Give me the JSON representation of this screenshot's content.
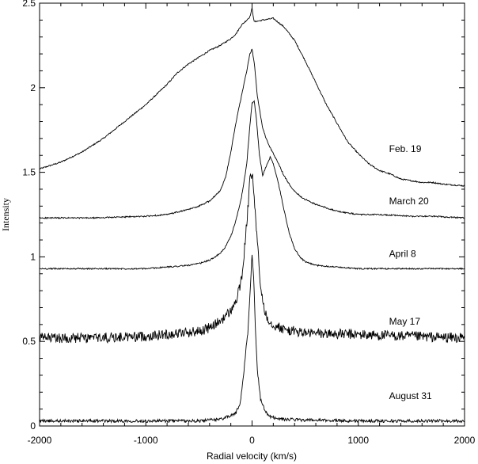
{
  "chart_data": {
    "type": "line",
    "title": "",
    "xlabel": "Radial velocity (km/s)",
    "ylabel": "Intensity",
    "xlim": [
      -2000,
      2000
    ],
    "ylim": [
      0,
      2.5
    ],
    "x_ticks": [
      -2000,
      -1000,
      0,
      1000,
      2000
    ],
    "x_tick_labels": [
      "-2000",
      "-1000",
      "0",
      "1000",
      "2000"
    ],
    "y_ticks": [
      0,
      0.5,
      1,
      1.5,
      2,
      2.5
    ],
    "y_tick_labels": [
      "0",
      "0.5",
      "1",
      "1.5",
      "2",
      "2.5"
    ],
    "grid": false,
    "series": [
      {
        "name": "Feb. 19",
        "noise": 0.004,
        "label_x": 1290,
        "label_y": 1.62,
        "x": [
          -2000,
          -1800,
          -1600,
          -1400,
          -1200,
          -1000,
          -800,
          -700,
          -600,
          -500,
          -400,
          -300,
          -200,
          -150,
          -100,
          -50,
          -20,
          0,
          20,
          100,
          200,
          300,
          400,
          500,
          600,
          700,
          800,
          900,
          1000,
          1100,
          1200,
          1300,
          1400,
          1500,
          1600,
          1700,
          1800,
          2000
        ],
        "y": [
          1.52,
          1.56,
          1.62,
          1.7,
          1.8,
          1.9,
          2.02,
          2.09,
          2.14,
          2.18,
          2.22,
          2.25,
          2.29,
          2.32,
          2.37,
          2.4,
          2.42,
          2.47,
          2.39,
          2.4,
          2.41,
          2.36,
          2.28,
          2.16,
          2.03,
          1.9,
          1.79,
          1.68,
          1.61,
          1.55,
          1.51,
          1.49,
          1.46,
          1.45,
          1.44,
          1.44,
          1.43,
          1.42
        ]
      },
      {
        "name": "March 20",
        "noise": 0.004,
        "label_x": 1290,
        "label_y": 1.31,
        "x": [
          -2000,
          -1500,
          -1000,
          -800,
          -600,
          -500,
          -400,
          -300,
          -250,
          -200,
          -150,
          -100,
          -50,
          -20,
          0,
          20,
          50,
          100,
          150,
          200,
          250,
          300,
          350,
          400,
          450,
          500,
          600,
          700,
          800,
          900,
          1000,
          1200,
          1500,
          1700,
          2000
        ],
        "y": [
          1.23,
          1.23,
          1.24,
          1.25,
          1.28,
          1.3,
          1.33,
          1.39,
          1.47,
          1.62,
          1.8,
          1.95,
          2.1,
          2.2,
          2.23,
          2.15,
          1.95,
          1.76,
          1.67,
          1.61,
          1.55,
          1.48,
          1.43,
          1.39,
          1.36,
          1.34,
          1.31,
          1.29,
          1.27,
          1.26,
          1.25,
          1.25,
          1.24,
          1.24,
          1.23
        ]
      },
      {
        "name": "April 8",
        "noise": 0.004,
        "label_x": 1290,
        "label_y": 1.0,
        "x": [
          -2000,
          -1500,
          -1000,
          -800,
          -600,
          -500,
          -400,
          -300,
          -250,
          -200,
          -150,
          -100,
          -50,
          -20,
          0,
          20,
          40,
          70,
          100,
          130,
          170,
          200,
          250,
          300,
          350,
          400,
          450,
          500,
          600,
          800,
          1000,
          1500,
          2000
        ],
        "y": [
          0.93,
          0.93,
          0.93,
          0.94,
          0.95,
          0.96,
          0.98,
          1.02,
          1.06,
          1.12,
          1.22,
          1.35,
          1.55,
          1.78,
          1.91,
          1.92,
          1.82,
          1.6,
          1.48,
          1.53,
          1.59,
          1.55,
          1.43,
          1.28,
          1.14,
          1.05,
          1.0,
          0.97,
          0.95,
          0.94,
          0.93,
          0.93,
          0.93
        ]
      },
      {
        "name": "May 17",
        "noise": 0.03,
        "label_x": 1290,
        "label_y": 0.6,
        "x": [
          -2000,
          -1500,
          -1000,
          -500,
          -400,
          -300,
          -200,
          -150,
          -100,
          -70,
          -40,
          -20,
          0,
          20,
          50,
          80,
          120,
          160,
          200,
          300,
          500,
          1000,
          1500,
          2000
        ],
        "y": [
          0.52,
          0.52,
          0.53,
          0.56,
          0.58,
          0.62,
          0.68,
          0.74,
          0.86,
          1.05,
          1.28,
          1.45,
          1.49,
          1.36,
          1.08,
          0.82,
          0.68,
          0.62,
          0.6,
          0.57,
          0.55,
          0.54,
          0.53,
          0.52
        ]
      },
      {
        "name": "August 31",
        "noise": 0.009,
        "label_x": 1290,
        "label_y": 0.16,
        "x": [
          -2000,
          -1500,
          -1000,
          -500,
          -300,
          -200,
          -150,
          -110,
          -80,
          -60,
          -40,
          -20,
          0,
          15,
          30,
          50,
          80,
          120,
          160,
          200,
          300,
          500,
          1000,
          1500,
          2000
        ],
        "y": [
          0.03,
          0.03,
          0.03,
          0.03,
          0.04,
          0.06,
          0.08,
          0.14,
          0.3,
          0.44,
          0.55,
          0.78,
          1.02,
          0.88,
          0.6,
          0.33,
          0.16,
          0.09,
          0.06,
          0.05,
          0.04,
          0.035,
          0.03,
          0.03,
          0.03
        ]
      }
    ]
  }
}
